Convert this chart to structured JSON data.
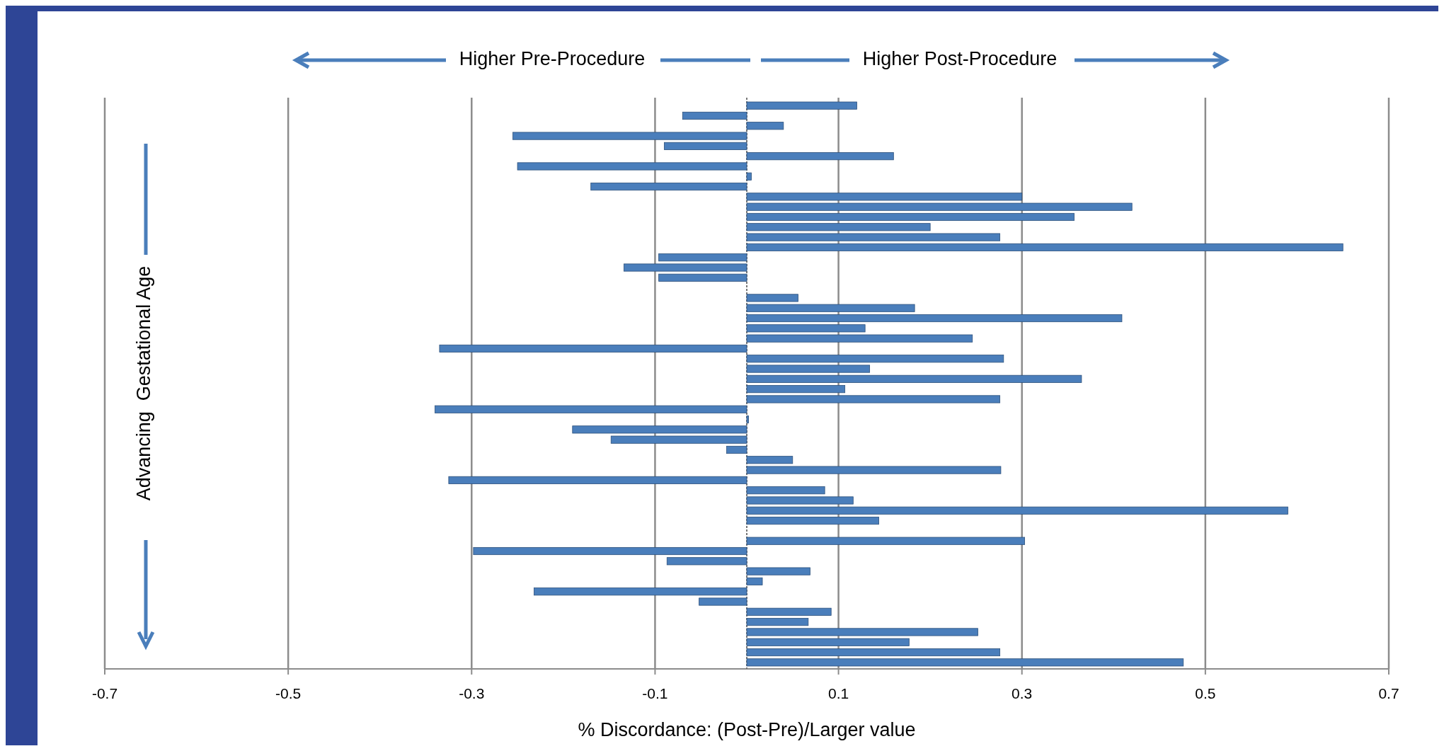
{
  "chart_data": {
    "type": "bar",
    "orientation": "horizontal",
    "categories": [
      null,
      null,
      null,
      null,
      null,
      null,
      null,
      null,
      null,
      null,
      null,
      null,
      null,
      null,
      null,
      null,
      null,
      null,
      null,
      null,
      null,
      null,
      null,
      null,
      null,
      null,
      null,
      null,
      null,
      null,
      null,
      null,
      null,
      null,
      null,
      null,
      null,
      null,
      null,
      null,
      null,
      null,
      null,
      null,
      null,
      null,
      null,
      null,
      null,
      null,
      null,
      null,
      null,
      null,
      null,
      null
    ],
    "values": [
      0.12,
      -0.07,
      0.04,
      -0.255,
      -0.09,
      0.16,
      -0.25,
      0.005,
      -0.17,
      0.3,
      0.42,
      0.357,
      0.2,
      0.276,
      0.65,
      -0.096,
      -0.134,
      -0.096,
      0,
      0.056,
      0.183,
      0.409,
      0.129,
      0.246,
      -0.335,
      0.28,
      0.134,
      0.365,
      0.107,
      0.276,
      -0.34,
      0.002,
      -0.19,
      -0.148,
      -0.022,
      0.05,
      0.277,
      -0.325,
      0.085,
      0.116,
      0.59,
      0.144,
      0,
      0.303,
      -0.298,
      -0.087,
      0.069,
      0.017,
      -0.232,
      -0.052,
      0.092,
      0.067,
      0.252,
      0.177,
      0.276,
      0.476
    ],
    "color": "#4a7ebb",
    "xlim": [
      -0.7,
      0.7
    ],
    "xticks": [
      -0.7,
      -0.5,
      -0.3,
      -0.1,
      0.1,
      0.3,
      0.5,
      0.7
    ],
    "grid": "x",
    "ref_lines": [
      {
        "axis": "x",
        "value": 0,
        "line_style": "dashed",
        "color": "#777777"
      }
    ],
    "xlabel": "% Discordance: (Post-Pre)/Larger value",
    "ylabel": "Advancing  Gestational Age",
    "annotations": [
      "Higher Pre-Procedure",
      "Higher Post-Procedure"
    ]
  }
}
